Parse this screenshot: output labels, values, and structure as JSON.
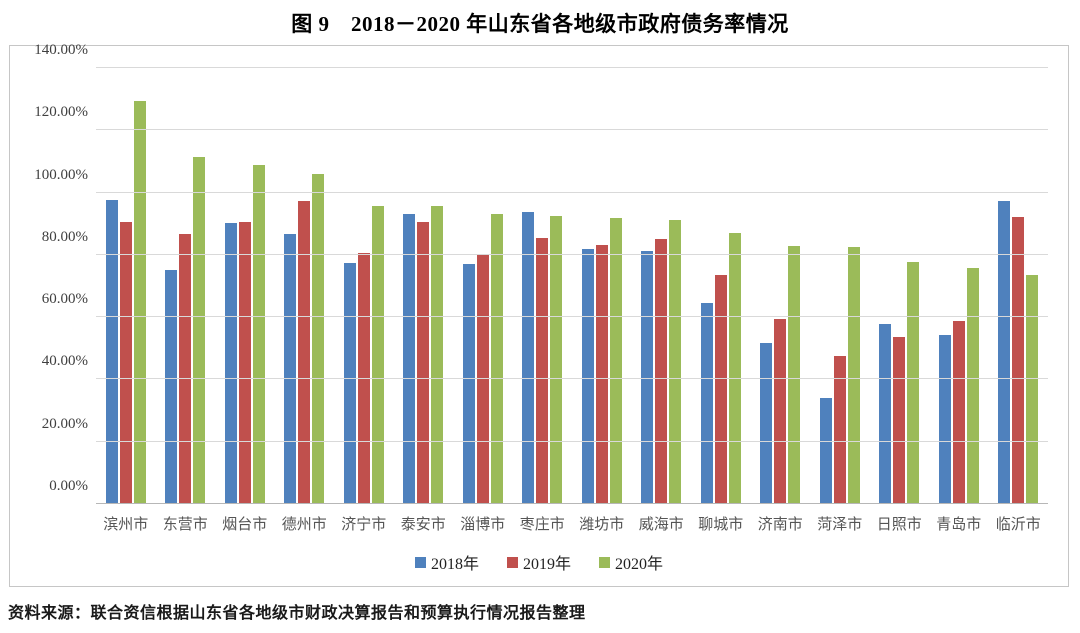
{
  "title": "图 9　2018－2020 年山东省各地级市政府债务率情况",
  "source": "资料来源：联合资信根据山东省各地级市财政决算报告和预算执行情况报告整理",
  "colors": {
    "series_2018": "#4F81BD",
    "series_2019": "#C0504D",
    "series_2020": "#9BBB59",
    "gridline": "#D9D9D9",
    "axis_line": "#B7B7B7",
    "box_border": "#C6C6C6",
    "tick_text": "#3F3F3F"
  },
  "chart_data": {
    "type": "bar",
    "title": "图 9　2018－2020 年山东省各地级市政府债务率情况",
    "categories": [
      "滨州市",
      "东营市",
      "烟台市",
      "德州市",
      "济宁市",
      "泰安市",
      "淄博市",
      "枣庄市",
      "潍坊市",
      "威海市",
      "聊城市",
      "济南市",
      "菏泽市",
      "日照市",
      "青岛市",
      "临沂市"
    ],
    "series": [
      {
        "name": "2018年",
        "color": "#4F81BD",
        "values": [
          97.5,
          75.1,
          90.3,
          86.8,
          77.3,
          93.2,
          77.2,
          93.9,
          82.0,
          81.4,
          64.4,
          51.7,
          34.0,
          57.7,
          54.2,
          97.2
        ]
      },
      {
        "name": "2019年",
        "color": "#C0504D",
        "values": [
          90.6,
          86.7,
          90.6,
          97.4,
          80.5,
          90.7,
          80.4,
          85.3,
          83.2,
          85.1,
          73.6,
          59.4,
          47.4,
          53.5,
          58.8,
          92.1
        ]
      },
      {
        "name": "2020年",
        "color": "#9BBB59",
        "values": [
          129.5,
          111.4,
          108.7,
          106.0,
          95.8,
          95.8,
          93.1,
          92.6,
          91.7,
          91.2,
          86.9,
          83.0,
          82.4,
          77.8,
          75.7,
          73.6
        ]
      }
    ],
    "xlabel": "",
    "ylabel": "",
    "ylim": [
      0,
      140
    ],
    "ytick_step": 20,
    "ytick_labels": [
      "0.00%",
      "20.00%",
      "40.00%",
      "60.00%",
      "80.00%",
      "100.00%",
      "120.00%",
      "140.00%"
    ],
    "grid": true,
    "legend_position": "bottom"
  }
}
